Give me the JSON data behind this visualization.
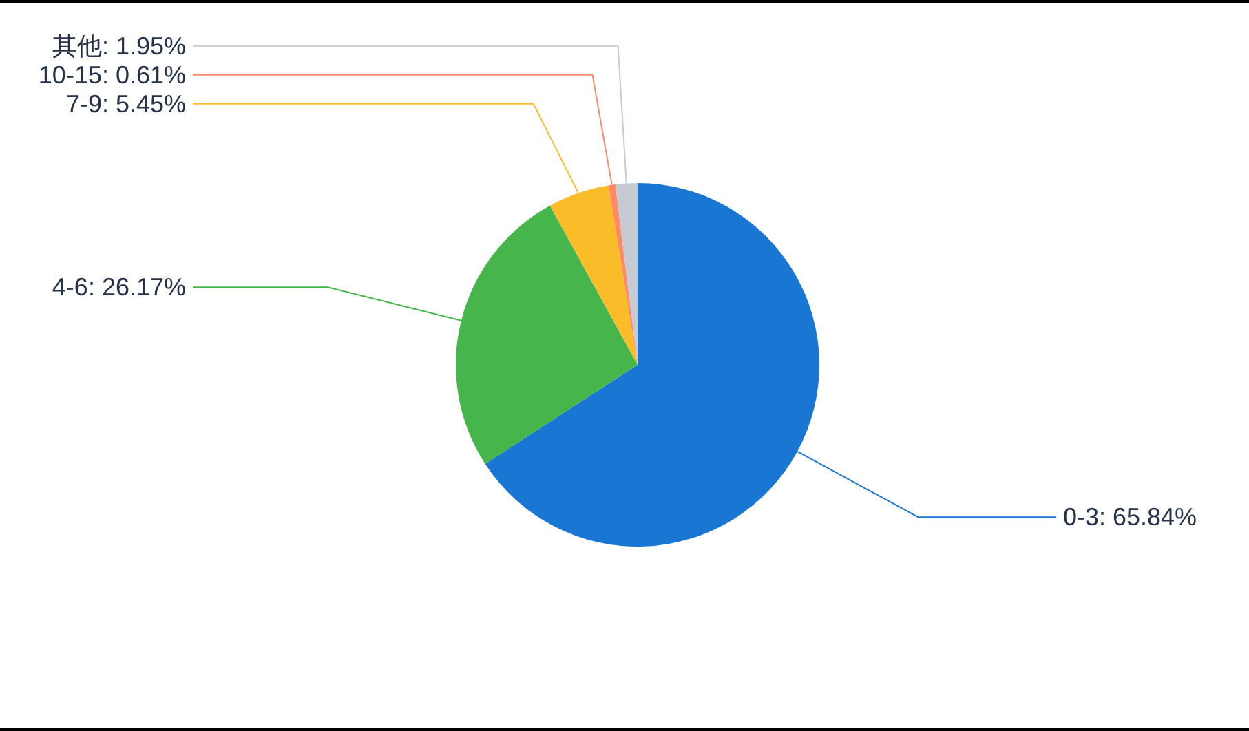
{
  "chart_data": {
    "type": "pie",
    "categories": [
      "0-3",
      "4-6",
      "7-9",
      "10-15",
      "其他"
    ],
    "values": [
      65.84,
      26.17,
      5.45,
      0.61,
      1.95
    ],
    "value_labels": [
      "65.84%",
      "26.17%",
      "5.45%",
      "0.61%",
      "1.95%"
    ],
    "colors": [
      "#1976d2",
      "#46b64c",
      "#fbbc2a",
      "#ff8a65",
      "#c5cad3"
    ]
  }
}
